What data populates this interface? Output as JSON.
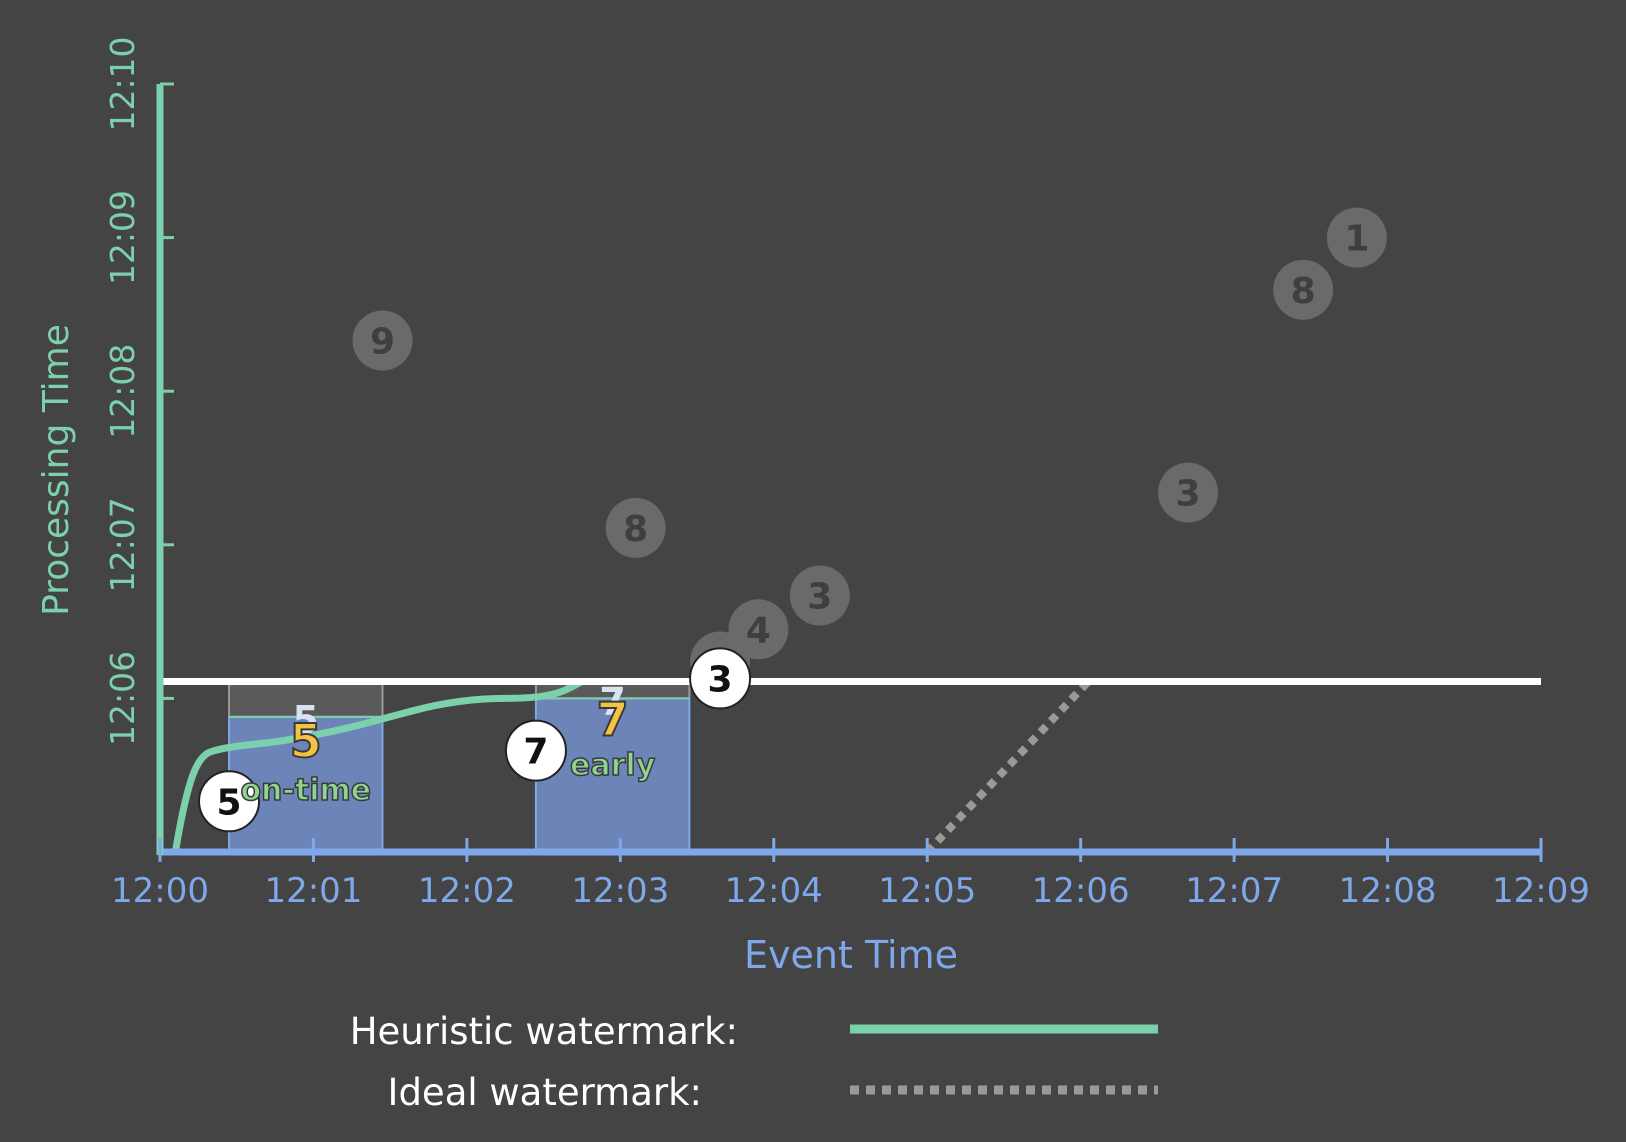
{
  "chart_data": {
    "type": "scatter",
    "xlabel": "Event Time",
    "ylabel": "Processing Time",
    "x_ticks": [
      "12:00",
      "12:01",
      "12:02",
      "12:03",
      "12:04",
      "12:05",
      "12:06",
      "12:07",
      "12:08",
      "12:09"
    ],
    "y_ticks": [
      "12:06",
      "12:07",
      "12:08",
      "12:09",
      "12:10"
    ],
    "x_range_minutes": [
      0,
      9
    ],
    "y_range_minutes": [
      5,
      10
    ],
    "colors": {
      "background": "#444444",
      "x_axis": "#7fa8ea",
      "y_axis": "#7cd1ac",
      "heuristic": "#7cd1ac",
      "ideal": "#9a9a9a",
      "processing_line": "#ffffff",
      "pane_fill": "#6d84b8",
      "pane_top": "#5a5a5a",
      "result_value": "#f5c342",
      "label_green": "#8fd48f",
      "pending": "#6a6a6a"
    },
    "processing_time_line": {
      "y": 6.11,
      "x_from": 0,
      "x_to": 9
    },
    "heuristic_watermark": [
      [
        0.1,
        5.0
      ],
      [
        0.15,
        5.3
      ],
      [
        0.25,
        5.62
      ],
      [
        0.4,
        5.68
      ],
      [
        0.8,
        5.72
      ],
      [
        1.2,
        5.8
      ],
      [
        1.5,
        5.88
      ],
      [
        1.8,
        5.96
      ],
      [
        2.1,
        6.0
      ],
      [
        2.4,
        6.0
      ],
      [
        2.6,
        6.03
      ],
      [
        2.75,
        6.11
      ]
    ],
    "ideal_watermark": [
      [
        5.0,
        5.0
      ],
      [
        6.05,
        6.11
      ]
    ],
    "windows": [
      {
        "x_start": 0.45,
        "x_end": 1.45,
        "watermark_y": 5.88,
        "shadow_value": "5",
        "value": "5",
        "label": "on-time",
        "label_x": 0.95,
        "value_y": 5.62,
        "label_y": 5.34
      },
      {
        "x_start": 2.45,
        "x_end": 3.45,
        "watermark_y": 6.0,
        "shadow_value": "7",
        "value": "7",
        "label": "early",
        "label_x": 2.95,
        "value_y": 5.76,
        "label_y": 5.5
      }
    ],
    "processed_points": [
      {
        "x": 0.45,
        "y": 5.33,
        "value": "5"
      },
      {
        "x": 2.45,
        "y": 5.66,
        "value": "7"
      },
      {
        "x": 3.65,
        "y": 6.13,
        "value": "3"
      }
    ],
    "pending_points": [
      {
        "x": 1.45,
        "y": 8.33,
        "value": "9"
      },
      {
        "x": 3.1,
        "y": 7.11,
        "value": "8"
      },
      {
        "x": 3.65,
        "y": 6.24,
        "value": "3"
      },
      {
        "x": 3.9,
        "y": 6.45,
        "value": "4"
      },
      {
        "x": 4.3,
        "y": 6.67,
        "value": "3"
      },
      {
        "x": 6.7,
        "y": 7.34,
        "value": "3"
      },
      {
        "x": 7.45,
        "y": 8.66,
        "value": "8"
      },
      {
        "x": 7.8,
        "y": 9.0,
        "value": "1"
      }
    ]
  },
  "legend": {
    "heuristic_label": "Heuristic watermark:",
    "ideal_label": "Ideal watermark:"
  }
}
